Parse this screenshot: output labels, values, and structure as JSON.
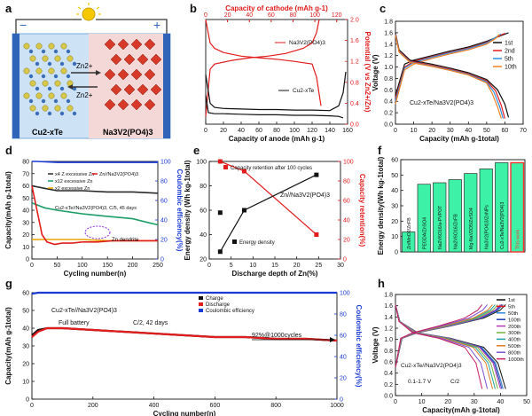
{
  "panel_letters": {
    "a": "a",
    "b": "b",
    "c": "c",
    "d": "d",
    "e": "e",
    "f": "f",
    "g": "g",
    "h": "h"
  },
  "panel_a": {
    "left_label": "Cu2-xTe",
    "right_label": "Na3V2(PO4)3",
    "ion_top": "Zn2+",
    "ion_bottom": "Zn2+",
    "colors": {
      "left_cell": "#d7e6f5",
      "right_cell": "#f6dcdc",
      "electrode_left": "#2f64b8",
      "electrode_right": "#2f64b8",
      "bulb": "#f5c800"
    }
  },
  "chart_data": [
    {
      "id": "b",
      "type": "line",
      "x_top_label": "Capacity of cathode (mAh g-1)",
      "x_top_ticks": [
        "0",
        "20",
        "40",
        "60",
        "80",
        "100",
        "120"
      ],
      "x_label": "Capacity of anode (mAh g-1)",
      "x_ticks": [
        "0",
        "20",
        "40",
        "60",
        "80",
        "100",
        "120",
        "140",
        "160"
      ],
      "y_left_label": "Potential (V vs Zn2+/Zn)",
      "y_left_ticks": [
        "0.0",
        "0.4",
        "0.8",
        "1.2",
        "1.6",
        "2.0"
      ],
      "y_right_label": "Potential (V vs Zn2+/Zn)",
      "y_right_ticks": [
        "0.0",
        "0.4",
        "0.8",
        "1.2",
        "1.6",
        "2.0"
      ],
      "xlim": [
        0,
        160
      ],
      "ylim": [
        0,
        2.0
      ],
      "series": [
        {
          "name": "Na3V2(PO4)3",
          "color": "#e21b1b",
          "x": [
            0,
            5,
            10,
            20,
            40,
            60,
            80,
            100,
            120,
            125,
            130
          ],
          "y": [
            2.0,
            1.55,
            1.45,
            1.37,
            1.3,
            1.27,
            1.24,
            1.2,
            1.15,
            0.9,
            0.35
          ]
        },
        {
          "name": "Na3V2(PO4)3",
          "color": "#e21b1b",
          "x": [
            0,
            5,
            10,
            30,
            50,
            70,
            90,
            110,
            120,
            125,
            128
          ],
          "y": [
            0.15,
            1.05,
            1.15,
            1.22,
            1.27,
            1.3,
            1.35,
            1.45,
            1.55,
            1.75,
            2.0
          ]
        },
        {
          "name": "Cu2-xTe",
          "color": "#111111",
          "x": [
            0,
            5,
            10,
            20,
            40,
            60,
            80,
            100,
            120,
            140,
            150,
            155,
            158
          ],
          "y": [
            0.95,
            0.4,
            0.32,
            0.3,
            0.29,
            0.28,
            0.28,
            0.27,
            0.27,
            0.26,
            0.35,
            0.6,
            1.0
          ]
        },
        {
          "name": "Cu2-xTe",
          "color": "#111111",
          "x": [
            0,
            3,
            10,
            20,
            40,
            60,
            80,
            100,
            120,
            140,
            150,
            155
          ],
          "y": [
            0.55,
            0.22,
            0.2,
            0.2,
            0.19,
            0.18,
            0.18,
            0.17,
            0.17,
            0.16,
            0.15,
            0.12
          ]
        }
      ]
    },
    {
      "id": "c",
      "type": "line",
      "x_label": "Capacity (mAh g-1total)",
      "x_ticks": [
        "0",
        "10",
        "20",
        "30",
        "40",
        "50",
        "60",
        "70"
      ],
      "y_label": "Voltage (V)",
      "y_ticks": [
        "0.0",
        "0.2",
        "0.4",
        "0.6",
        "0.8",
        "1.0",
        "1.2",
        "1.4",
        "1.6",
        "1.8"
      ],
      "xlim": [
        0,
        70
      ],
      "ylim": [
        0,
        1.8
      ],
      "annotation": "Cu2-xTe/Na3V2(PO4)3",
      "series": [
        {
          "name": "1st",
          "color": "#111111",
          "x": [
            0,
            5,
            10,
            20,
            30,
            40,
            50,
            58,
            62
          ],
          "y": [
            0.5,
            1.05,
            1.12,
            1.2,
            1.28,
            1.35,
            1.45,
            1.55,
            1.6
          ]
        },
        {
          "name": "2nd",
          "color": "#e21b1b",
          "x": [
            0,
            5,
            10,
            20,
            30,
            40,
            50,
            56,
            60
          ],
          "y": [
            0.45,
            1.0,
            1.1,
            1.18,
            1.26,
            1.33,
            1.43,
            1.53,
            1.59
          ]
        },
        {
          "name": "5th",
          "color": "#2f8de0",
          "x": [
            0,
            5,
            10,
            20,
            30,
            40,
            50,
            55,
            58
          ],
          "y": [
            0.4,
            0.98,
            1.08,
            1.17,
            1.25,
            1.32,
            1.42,
            1.52,
            1.58
          ]
        },
        {
          "name": "10th",
          "color": "#f07f1f",
          "x": [
            0,
            5,
            10,
            20,
            30,
            40,
            50,
            55,
            57
          ],
          "y": [
            0.35,
            0.95,
            1.05,
            1.15,
            1.23,
            1.3,
            1.4,
            1.5,
            1.57
          ]
        },
        {
          "name": "1st",
          "color": "#111111",
          "x": [
            0,
            2,
            8,
            20,
            30,
            40,
            50,
            56,
            60,
            62
          ],
          "y": [
            1.6,
            1.3,
            1.12,
            1.05,
            0.98,
            0.9,
            0.78,
            0.6,
            0.35,
            0.12
          ]
        },
        {
          "name": "2nd",
          "color": "#e21b1b",
          "x": [
            0,
            2,
            8,
            20,
            30,
            40,
            50,
            55,
            58,
            60
          ],
          "y": [
            1.58,
            1.28,
            1.1,
            1.03,
            0.96,
            0.88,
            0.76,
            0.58,
            0.33,
            0.1
          ]
        },
        {
          "name": "5th",
          "color": "#2f8de0",
          "x": [
            0,
            2,
            8,
            20,
            30,
            40,
            50,
            54,
            57,
            59
          ],
          "y": [
            1.57,
            1.27,
            1.09,
            1.02,
            0.95,
            0.87,
            0.74,
            0.56,
            0.32,
            0.1
          ]
        },
        {
          "name": "10th",
          "color": "#f07f1f",
          "x": [
            0,
            2,
            8,
            20,
            30,
            40,
            50,
            53,
            56,
            58
          ],
          "y": [
            1.56,
            1.26,
            1.08,
            1.01,
            0.94,
            0.86,
            0.72,
            0.54,
            0.3,
            0.1
          ]
        }
      ]
    },
    {
      "id": "d",
      "type": "line",
      "x_label": "Cycling number(n)",
      "x_ticks": [
        "0",
        "50",
        "100",
        "150",
        "200",
        "250"
      ],
      "y_label": "Capacity(mAh g-1total)",
      "y_ticks": [
        "0",
        "10",
        "20",
        "30",
        "40",
        "50",
        "60",
        "70",
        "80"
      ],
      "y_right_label": "Coulombic efficiency(%)",
      "y_right_ticks": [
        "0",
        "20",
        "40",
        "60",
        "80",
        "100"
      ],
      "xlim": [
        0,
        250
      ],
      "ylim": [
        0,
        80
      ],
      "y_right_lim": [
        0,
        100
      ],
      "legend": [
        "x4 Z excessive Zn",
        "x12 excessive Zn",
        "x2 excessive Zn",
        "Zn//Na3V2(PO4)3"
      ],
      "annotations": [
        "Cu2-xTe//Na3V2(PO4)3, C/5, 45 days",
        "Zn dendrite"
      ],
      "series": [
        {
          "name": "x4 Z excessive Zn",
          "color": "#2a2a2a",
          "x": [
            0,
            25,
            50,
            100,
            150,
            200,
            250
          ],
          "y": [
            60,
            58,
            56,
            56,
            55,
            55,
            54
          ]
        },
        {
          "name": "x12 excessive Zn",
          "color": "#1c9e68",
          "x": [
            0,
            25,
            50,
            100,
            150,
            200,
            230,
            250
          ],
          "y": [
            46,
            42,
            40,
            37,
            35,
            33,
            30,
            28
          ]
        },
        {
          "name": "x2 excessive Zn",
          "color": "#e8a400",
          "x": [
            0,
            25,
            50,
            100,
            150,
            200,
            250
          ],
          "y": [
            16,
            16,
            16,
            16,
            15,
            15,
            15
          ]
        },
        {
          "name": "Zn//Na3V2(PO4)3",
          "color": "#e21b1b",
          "x": [
            0,
            10,
            20,
            30,
            45,
            60,
            80,
            100
          ],
          "y": [
            60,
            40,
            20,
            14,
            12,
            13,
            13,
            14
          ]
        },
        {
          "name": "Zn//Na3V2(PO4)3",
          "color": "#e21b1b",
          "x": [
            100,
            130,
            160,
            180,
            200,
            230,
            250
          ],
          "y": [
            14,
            14,
            15,
            15,
            15,
            15,
            15
          ]
        },
        {
          "name": "Coulombic efficiency",
          "color": "#1a3ad6",
          "x": [
            0,
            5,
            10,
            50,
            100,
            150,
            200,
            250
          ],
          "y": [
            100,
            100,
            100,
            99,
            99,
            99,
            99,
            99
          ],
          "axis": "right"
        }
      ]
    },
    {
      "id": "e",
      "type": "line",
      "x_label": "Discharge depth of Zn(%)",
      "x_ticks": [
        "0",
        "5",
        "10",
        "15",
        "20",
        "25",
        "30"
      ],
      "y_label": "Energy density (Wh kg-1total)",
      "y_ticks": [
        "20",
        "40",
        "60",
        "80",
        "100"
      ],
      "y_right_label": "Capacity retention(%)",
      "y_right_ticks": [
        "0",
        "20",
        "40",
        "60",
        "80",
        "100"
      ],
      "xlim": [
        0,
        30
      ],
      "ylim": [
        20,
        100
      ],
      "y_right_lim": [
        0,
        100
      ],
      "annotation": "Zn//Na3V2(PO4)3",
      "series": [
        {
          "name": "Capacity retention after 100 cycles",
          "color": "#e21b1b",
          "x": [
            2.5,
            8,
            24.5
          ],
          "y": [
            100,
            90,
            25
          ],
          "axis": "right"
        },
        {
          "name": "Energy density",
          "color": "#111111",
          "x": [
            2.5,
            8,
            24.5
          ],
          "y": [
            26,
            60,
            89
          ]
        }
      ],
      "extra_points": [
        {
          "x": 2.5,
          "y": 58,
          "color": "#111111"
        }
      ]
    },
    {
      "id": "f",
      "type": "bar",
      "y_label": "Energy density(Wh kg-1total)",
      "y_ticks": [
        "0",
        "10",
        "20",
        "30",
        "40",
        "50",
        "60"
      ],
      "ylim": [
        0,
        60
      ],
      "categories": [
        "Zn//MnO2/ZnFB",
        "PEGDA//ZnSO4",
        "Na2V6O16//a-PVPOT",
        "Na2V6O16//ZnFB",
        "Mg-NaV2O5//ZnSO4",
        "Na3V2(PO4)3//ZnNPs",
        "Cu2-xTe//Na3V2(PO4)3",
        "This work"
      ],
      "values": [
        13,
        44,
        45,
        47,
        51,
        54,
        58,
        58
      ],
      "bar_color": "#3df2a6",
      "highlight_color": "#ff3030",
      "bar_labels": [
        "Zn/MnO2/ZnFB",
        "PEGDA/ZnSO4",
        "Na2V6O16/a-PVPOT",
        "Na2V6O16/ZnFB",
        "Mg-NaV2O5/ZnSO4",
        "Na3V2(PO4)3/ZnNPs",
        "Cu2-xTe/Na3V2(PO4)3",
        "This work"
      ]
    },
    {
      "id": "g",
      "type": "line",
      "x_label": "Cycling number(n)",
      "x_ticks": [
        "0",
        "200",
        "400",
        "600",
        "800",
        "1000"
      ],
      "y_label": "Capacity(mAh g-1total)",
      "y_ticks": [
        "0",
        "10",
        "20",
        "30",
        "40",
        "50",
        "60"
      ],
      "y_right_label": "Coulombic efficiency(%)",
      "y_right_ticks": [
        "0",
        "20",
        "40",
        "60",
        "80",
        "100"
      ],
      "xlim": [
        0,
        1000
      ],
      "ylim": [
        0,
        60
      ],
      "y_right_lim": [
        0,
        100
      ],
      "legend": [
        "Charge",
        "Discharge",
        "Coulombic efficiency"
      ],
      "annotations": [
        "Cu2-xTe//Na3V2(PO4)3",
        "Full battery",
        "C/2, 42 days",
        "92%@1000cycles"
      ],
      "series": [
        {
          "name": "Charge",
          "color": "#111111",
          "x": [
            0,
            20,
            50,
            100,
            200,
            300,
            400,
            500,
            600,
            700,
            800,
            900,
            1000
          ],
          "y": [
            36,
            39,
            40,
            40,
            39,
            38,
            37,
            36,
            35,
            35,
            34,
            34,
            33
          ]
        },
        {
          "name": "Discharge",
          "color": "#e21b1b",
          "x": [
            0,
            20,
            50,
            100,
            200,
            300,
            400,
            500,
            600,
            700,
            800,
            900,
            1000
          ],
          "y": [
            35,
            38,
            40,
            40,
            39,
            38,
            37,
            36,
            35,
            35,
            34,
            34,
            33
          ]
        },
        {
          "name": "Coulombic efficiency",
          "color": "#1a3ad6",
          "x": [
            0,
            20,
            100,
            200,
            400,
            600,
            800,
            1000
          ],
          "y": [
            99,
            100,
            100,
            100,
            100,
            100,
            100,
            100
          ],
          "axis": "right"
        }
      ]
    },
    {
      "id": "h",
      "type": "line",
      "x_label": "Capacity(mAh g-1total)",
      "x_ticks": [
        "0",
        "10",
        "20",
        "30",
        "40",
        "50"
      ],
      "y_label": "Voltage (V)",
      "y_ticks": [
        "0.0",
        "0.2",
        "0.4",
        "0.6",
        "0.8",
        "1.0",
        "1.2",
        "1.4",
        "1.6",
        "1.8"
      ],
      "xlim": [
        0,
        50
      ],
      "ylim": [
        0,
        1.8
      ],
      "annotations": [
        "Cu2-xTe//Na3V2(PO4)3",
        "0.1-1.7 V",
        "C/2"
      ],
      "legend": [
        "1st",
        "5th",
        "50th",
        "100th",
        "200th",
        "300th",
        "400th",
        "500th",
        "800th",
        "1000th"
      ],
      "capacities": [
        42,
        41,
        41,
        40.5,
        40,
        39,
        38,
        37,
        35,
        33
      ],
      "colors": [
        "#111111",
        "#e21b1b",
        "#2f8de0",
        "#1f3fb8",
        "#b23bb3",
        "#79b33a",
        "#19a2a0",
        "#e07b1f",
        "#7a4fd6",
        "#c61d60"
      ]
    }
  ]
}
